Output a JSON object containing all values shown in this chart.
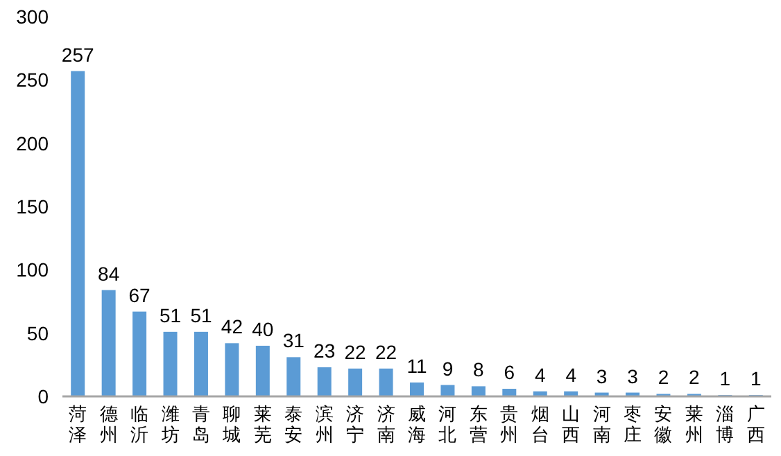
{
  "chart_data": {
    "type": "bar",
    "categories": [
      "菏泽",
      "德州",
      "临沂",
      "潍坊",
      "青岛",
      "聊城",
      "莱芜",
      "泰安",
      "滨州",
      "济宁",
      "济南",
      "威海",
      "河北",
      "东营",
      "贵州",
      "烟台",
      "山西",
      "河南",
      "枣庄",
      "安徽",
      "莱州",
      "淄博",
      "广西"
    ],
    "values": [
      257,
      84,
      67,
      51,
      51,
      42,
      40,
      31,
      23,
      22,
      22,
      11,
      9,
      8,
      6,
      4,
      4,
      3,
      3,
      2,
      2,
      1,
      1
    ],
    "color": "#5b9bd5",
    "ylim": [
      0,
      300
    ],
    "yticks": [
      0,
      50,
      100,
      150,
      200,
      250,
      300
    ],
    "data_labels": true,
    "grid": false
  }
}
